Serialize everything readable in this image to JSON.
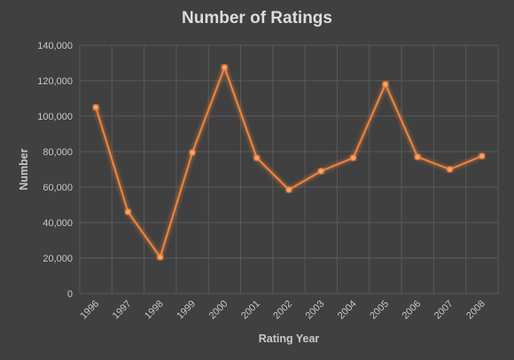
{
  "chart_data": {
    "type": "line",
    "title": "Number of Ratings",
    "xlabel": "Rating Year",
    "ylabel": "Number",
    "categories": [
      "1996",
      "1997",
      "1998",
      "1999",
      "2000",
      "2001",
      "2002",
      "2003",
      "2004",
      "2005",
      "2006",
      "2007",
      "2008"
    ],
    "series": [
      {
        "values": [
          105000,
          46000,
          20500,
          79500,
          127500,
          76500,
          58500,
          69000,
          76500,
          118000,
          77000,
          70000,
          77500
        ]
      }
    ],
    "ylim": [
      0,
      140000
    ],
    "yticks": [
      0,
      20000,
      40000,
      60000,
      80000,
      100000,
      120000,
      140000
    ],
    "ytick_labels": [
      "0",
      "20,000",
      "40,000",
      "60,000",
      "80,000",
      "100,000",
      "120,000",
      "140,000"
    ],
    "grid": true,
    "legend": "none",
    "colors": {
      "background": "#404040",
      "line": "#f0843c",
      "grid": "#5a5a5a",
      "text": "#c8c8c8"
    }
  }
}
